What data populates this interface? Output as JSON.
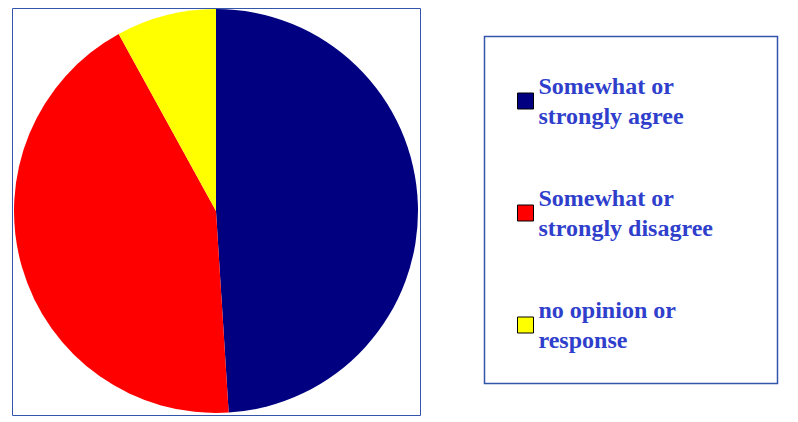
{
  "chart_data": {
    "type": "pie",
    "categories": [
      "Somewhat or strongly agree",
      "Somewhat or strongly disagree",
      "no opinion or response"
    ],
    "values": [
      49,
      43,
      8
    ],
    "colors": [
      "#000080",
      "#ff0000",
      "#ffff00"
    ],
    "legend": "right"
  }
}
